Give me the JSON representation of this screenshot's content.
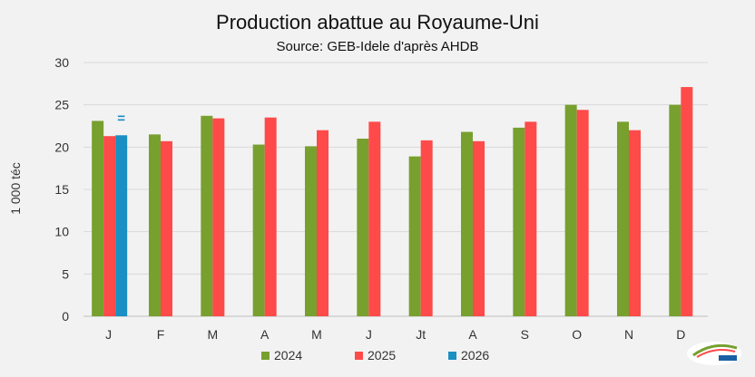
{
  "chart_data": {
    "type": "bar",
    "title": "Production abattue au Royaume-Uni",
    "subtitle": "Source: GEB-Idele d'après AHDB",
    "ylabel": "1 000 téc",
    "xlabel": "",
    "ylim": [
      0,
      30
    ],
    "yticks": [
      0,
      5,
      10,
      15,
      20,
      25,
      30
    ],
    "grid": true,
    "legend_position": "bottom",
    "categories": [
      "J",
      "F",
      "M",
      "A",
      "M",
      "J",
      "Jt",
      "A",
      "S",
      "O",
      "N",
      "D"
    ],
    "series": [
      {
        "name": "2024",
        "color": "#77a02f",
        "values": [
          23.1,
          21.5,
          23.7,
          20.3,
          20.1,
          21.0,
          18.9,
          21.8,
          22.3,
          25.0,
          23.0,
          25.0
        ]
      },
      {
        "name": "2025",
        "color": "#ff4a4a",
        "values": [
          21.3,
          20.7,
          23.4,
          23.5,
          22.0,
          23.0,
          20.8,
          20.7,
          23.0,
          24.4,
          22.0,
          27.1
        ]
      },
      {
        "name": "2026",
        "color": "#1a8fc2",
        "values": [
          21.4,
          null,
          null,
          null,
          null,
          null,
          null,
          null,
          null,
          null,
          null,
          null
        ]
      }
    ],
    "annotations": [
      {
        "text": "=",
        "category_index": 0,
        "series": "2026",
        "color": "#1a8fc2"
      }
    ]
  },
  "logo": {
    "name": "idele-logo-icon"
  }
}
